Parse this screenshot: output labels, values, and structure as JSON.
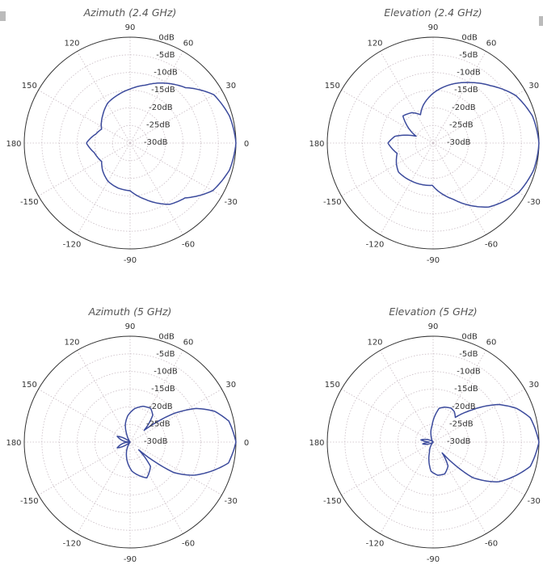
{
  "chart_data": [
    {
      "type": "polar",
      "title": "Azimuth (2.4 GHz)",
      "theta_ticks": [
        90,
        60,
        30,
        0,
        -30,
        -60,
        -90,
        -120,
        -150,
        180,
        150,
        120
      ],
      "r_ticks": [
        "0dB",
        "-5dB",
        "-10dB",
        "-15dB",
        "-20dB",
        "-25dB",
        "-30dB"
      ],
      "rlim": [
        -30,
        0
      ],
      "grid": true,
      "angles_deg": [
        -180,
        -165,
        -147,
        -135,
        -120,
        -105,
        -90,
        -75,
        -57,
        -45,
        -30,
        -15,
        0,
        15,
        30,
        45,
        56,
        75,
        90,
        105,
        119,
        135,
        154,
        165,
        180
      ],
      "values_db": [
        -17.6,
        -19.5,
        -20.4,
        -19,
        -17.5,
        -16.8,
        -16.5,
        -13.5,
        -9.3,
        -8,
        -3,
        -0.8,
        0,
        -0.8,
        -2.6,
        -7.8,
        -9.7,
        -13,
        -14.7,
        -16,
        -17,
        -19,
        -21,
        -20,
        -17.6
      ]
    },
    {
      "type": "polar",
      "title": "Elevation (2.4 GHz)",
      "theta_ticks": [
        90,
        60,
        30,
        0,
        -30,
        -60,
        -90,
        -120,
        -150,
        180,
        150,
        120
      ],
      "r_ticks": [
        "0dB",
        "-5dB",
        "-10dB",
        "-15dB",
        "-20dB",
        "-25dB",
        "-30dB"
      ],
      "rlim": [
        -30,
        0
      ],
      "grid": true,
      "angles_deg": [
        -180,
        -164,
        -150,
        -140,
        -120,
        -91,
        -70,
        -49,
        -30,
        -15,
        0,
        15,
        30,
        45,
        59,
        75,
        90,
        105,
        114,
        125,
        138,
        158,
        170,
        180
      ],
      "values_db": [
        -17.2,
        -19.4,
        -18,
        -17.2,
        -17.6,
        -18,
        -13,
        -6,
        -2,
        -0.5,
        0,
        -0.8,
        -3,
        -7,
        -10,
        -13,
        -15.9,
        -19,
        -21.2,
        -19.5,
        -18.5,
        -24.8,
        -19,
        -17.2
      ]
    },
    {
      "type": "polar",
      "title": "Azimuth (5 GHz)",
      "theta_ticks": [
        90,
        60,
        30,
        0,
        -30,
        -60,
        -90,
        -120,
        -150,
        180,
        150,
        120
      ],
      "r_ticks": [
        "0dB",
        "-5dB",
        "-10dB",
        "-15dB",
        "-20dB",
        "-25dB",
        "-30dB"
      ],
      "rlim": [
        -30,
        0
      ],
      "grid": true,
      "angles_deg": [
        -180,
        -170,
        -156,
        -140,
        -125,
        -105,
        -86,
        -65,
        -50,
        -42,
        -35,
        -27.6,
        -12,
        0,
        12,
        20,
        27,
        33,
        40,
        50,
        58.6,
        70,
        82,
        95,
        105,
        115,
        125,
        140,
        156,
        170,
        180
      ],
      "values_db": [
        -30,
        -28,
        -26,
        -29.5,
        -30,
        -26,
        -21.7,
        -18.8,
        -21,
        -26.7,
        -15,
        -9.7,
        -1.5,
        0,
        -1.4,
        -4.5,
        -9,
        -15,
        -24.8,
        -20,
        -18.8,
        -19.2,
        -20.4,
        -22.5,
        -24.8,
        -28,
        -30,
        -29.5,
        -26,
        -28,
        -30
      ]
    },
    {
      "type": "polar",
      "title": "Elevation (5 GHz)",
      "theta_ticks": [
        90,
        60,
        30,
        0,
        -30,
        -60,
        -90,
        -120,
        -150,
        180,
        150,
        120
      ],
      "r_ticks": [
        "0dB",
        "-5dB",
        "-10dB",
        "-15dB",
        "-20dB",
        "-25dB",
        "-30dB"
      ],
      "rlim": [
        -30,
        0
      ],
      "grid": true,
      "angles_deg": [
        -180,
        -170,
        -150,
        -130,
        -110,
        -94,
        -82,
        -70,
        -58,
        -50,
        -42,
        -31.5,
        -14,
        0,
        14,
        22,
        30,
        40,
        48,
        55,
        62,
        72,
        80,
        94,
        110,
        130,
        150,
        170,
        180
      ],
      "values_db": [
        -29,
        -27,
        -29.5,
        -30,
        -27,
        -21.7,
        -20.5,
        -20.4,
        -22,
        -26,
        -15,
        -8.4,
        -1.6,
        0,
        -1.6,
        -4.5,
        -8.7,
        -16,
        -20.6,
        -19.5,
        -19.1,
        -19.6,
        -20.3,
        -25.4,
        -28.5,
        -30,
        -29,
        -26.5,
        -29
      ]
    }
  ]
}
